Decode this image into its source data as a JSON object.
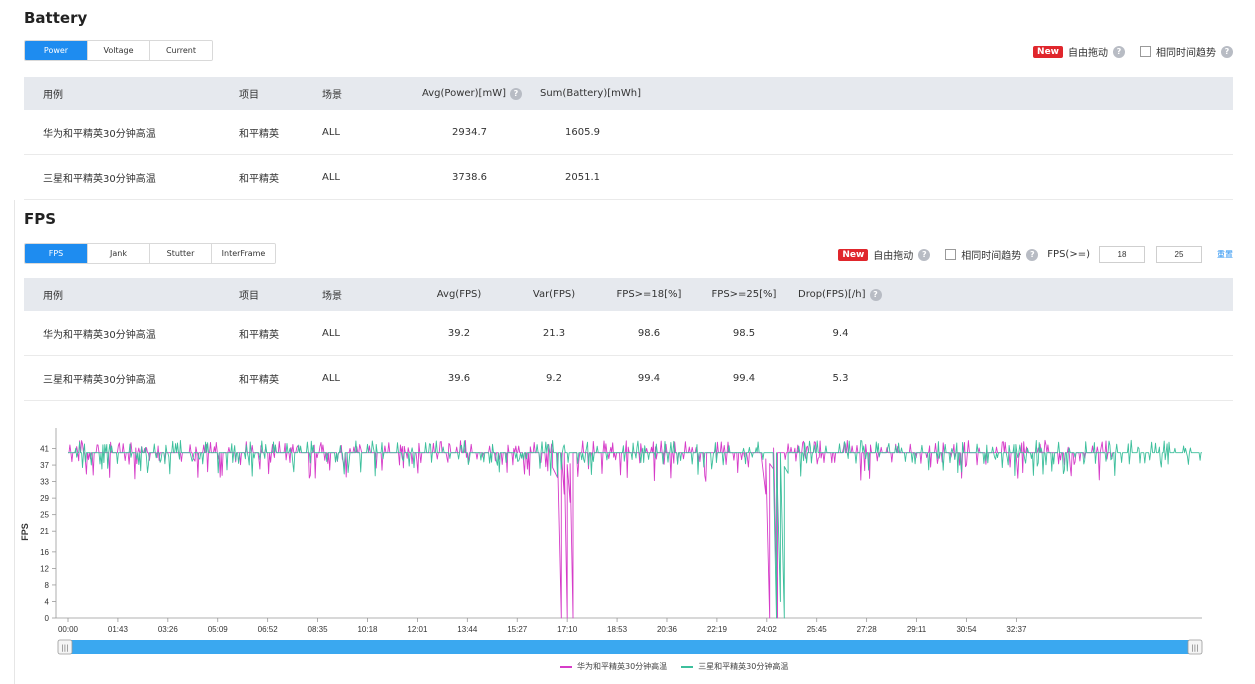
{
  "battery": {
    "title": "Battery",
    "tabs": [
      "Power",
      "Voltage",
      "Current"
    ],
    "active_tab": 0,
    "controls": {
      "new_badge": "New",
      "free_drag": "自由拖动",
      "same_time_trend": "相同时间趋势"
    },
    "columns": [
      "用例",
      "项目",
      "场景",
      "Avg(Power)[mW]",
      "Sum(Battery)[mWh]"
    ],
    "rows": [
      [
        "华为和平精英30分钟高温",
        "和平精英",
        "ALL",
        "2934.7",
        "1605.9"
      ],
      [
        "三星和平精英30分钟高温",
        "和平精英",
        "ALL",
        "3738.6",
        "2051.1"
      ]
    ]
  },
  "fps": {
    "title": "FPS",
    "tabs": [
      "FPS",
      "Jank",
      "Stutter",
      "InterFrame"
    ],
    "active_tab": 0,
    "controls": {
      "new_badge": "New",
      "free_drag": "自由拖动",
      "same_time_trend": "相同时间趋势",
      "threshold_label": "FPS(>=)",
      "threshold_1": "18",
      "threshold_2": "25",
      "reset": "重置"
    },
    "columns": [
      "用例",
      "项目",
      "场景",
      "Avg(FPS)",
      "Var(FPS)",
      "FPS>=18[%]",
      "FPS>=25[%]",
      "Drop(FPS)[/h]"
    ],
    "rows": [
      [
        "华为和平精英30分钟高温",
        "和平精英",
        "ALL",
        "39.2",
        "21.3",
        "98.6",
        "98.5",
        "9.4"
      ],
      [
        "三星和平精英30分钟高温",
        "和平精英",
        "ALL",
        "39.6",
        "9.2",
        "99.4",
        "99.4",
        "5.3"
      ]
    ]
  },
  "chart_data": {
    "type": "line",
    "ylabel": "FPS",
    "y_ticks": [
      0,
      4,
      8,
      12,
      16,
      21,
      25,
      29,
      33,
      37,
      41
    ],
    "x_ticks": [
      "00:00",
      "01:43",
      "03:26",
      "05:09",
      "06:52",
      "08:35",
      "10:18",
      "12:01",
      "13:44",
      "15:27",
      "17:10",
      "18:53",
      "20:36",
      "22:19",
      "24:02",
      "25:45",
      "27:28",
      "29:11",
      "30:54",
      "32:37"
    ],
    "ylim": [
      0,
      45
    ],
    "x_range_seconds": [
      0,
      2340
    ],
    "series": [
      {
        "name": "华为和平精英30分钟高温",
        "color": "#d63cc8",
        "baseline": 40,
        "end_seconds": 2160,
        "events": [
          {
            "t": 1000,
            "v": 40
          },
          {
            "t": 1010,
            "v": 34
          },
          {
            "t": 1018,
            "v": 0
          },
          {
            "t": 1024,
            "v": 30
          },
          {
            "t": 1030,
            "v": 0
          },
          {
            "t": 1036,
            "v": 28
          },
          {
            "t": 1042,
            "v": 0
          },
          {
            "t": 1050,
            "v": 40
          },
          {
            "t": 1430,
            "v": 40
          },
          {
            "t": 1440,
            "v": 30
          },
          {
            "t": 1448,
            "v": 0
          },
          {
            "t": 1456,
            "v": 36
          },
          {
            "t": 1464,
            "v": 0
          },
          {
            "t": 1476,
            "v": 40
          }
        ]
      },
      {
        "name": "三星和平精英30分钟高温",
        "color": "#3dbf9c",
        "baseline": 40,
        "end_seconds": 2340,
        "events": [
          {
            "t": 1455,
            "v": 40
          },
          {
            "t": 1462,
            "v": 0
          },
          {
            "t": 1470,
            "v": 4
          },
          {
            "t": 1478,
            "v": 0
          },
          {
            "t": 1486,
            "v": 35
          },
          {
            "t": 1496,
            "v": 40
          }
        ]
      }
    ],
    "legend_position": "bottom-center",
    "grid": false
  }
}
